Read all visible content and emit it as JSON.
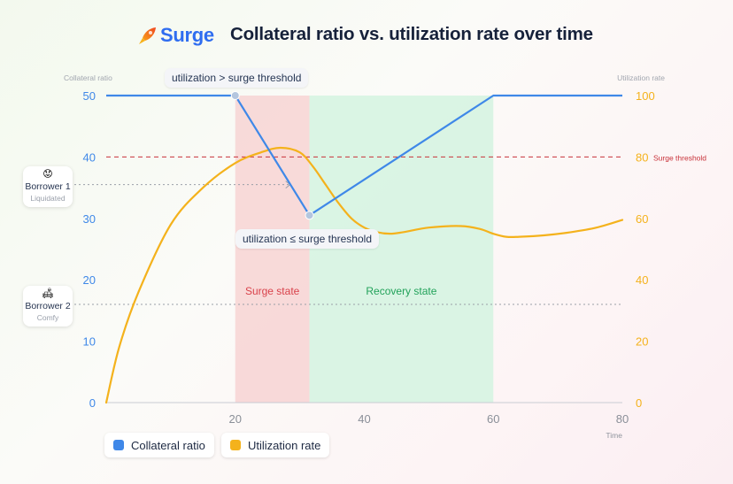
{
  "brand": {
    "name": "Surge"
  },
  "colors": {
    "collateral": "#3f88e8",
    "utilization": "#f4b21c",
    "threshold": "#c8323a",
    "surge_fill": "#f7d3d4",
    "recovery_fill": "#d3f3e0",
    "brand": "#2f6df0"
  },
  "chart_data": {
    "type": "line",
    "title": "Collateral ratio vs. utilization rate over time",
    "xlabel": "Time",
    "ylabel_left": "Collateral ratio",
    "ylabel_right": "Utilization rate",
    "xlim": [
      0,
      80
    ],
    "ylim_left": [
      0,
      50
    ],
    "ylim_right": [
      0,
      100
    ],
    "x_ticks": [
      "20",
      "40",
      "60",
      "80"
    ],
    "y_left_ticks": [
      "0",
      "10",
      "20",
      "30",
      "40",
      "50"
    ],
    "y_right_ticks": [
      "0",
      "20",
      "40",
      "60",
      "80",
      "100"
    ],
    "series": [
      {
        "name": "Collateral ratio",
        "axis": "left",
        "x": [
          0,
          20,
          31.5,
          60,
          80
        ],
        "values": [
          50,
          50,
          30.5,
          50,
          50
        ]
      },
      {
        "name": "Utilization rate",
        "axis": "right",
        "x": [
          0,
          2,
          5,
          10,
          15,
          20,
          24,
          27,
          30,
          32,
          34,
          36,
          38,
          40,
          42,
          44,
          46,
          50,
          55,
          58,
          60,
          62,
          64,
          68,
          72,
          76,
          80
        ],
        "values": [
          0,
          18,
          36,
          58,
          70,
          78,
          81.5,
          83,
          81.5,
          77,
          71,
          65,
          60,
          57,
          55.5,
          55,
          55.5,
          57,
          57.5,
          56.5,
          55,
          54,
          54,
          54.5,
          55.5,
          57,
          59.5
        ]
      }
    ],
    "threshold": {
      "value": 80,
      "axis": "right",
      "label": "Surge threshold"
    },
    "regions": [
      {
        "name": "Surge state",
        "x": [
          20,
          31.5
        ]
      },
      {
        "name": "Recovery state",
        "x": [
          31.5,
          60
        ]
      }
    ],
    "markers": [
      {
        "x": 20,
        "y": 50
      },
      {
        "x": 31.5,
        "y": 30.5
      }
    ],
    "borrower_levels": [
      {
        "name": "Borrower 1",
        "y": 35.5
      },
      {
        "name": "Borrower 2",
        "y": 16
      }
    ]
  },
  "annotations": {
    "surge_callout": "utilization > surge threshold",
    "recovery_callout": "utilization ≤ surge threshold"
  },
  "borrowers": [
    {
      "emoji": "😟",
      "name": "Borrower 1",
      "status": "Liquidated"
    },
    {
      "emoji": "🛋",
      "name": "Borrower 2",
      "status": "Comfy"
    }
  ],
  "legend": [
    "Collateral ratio",
    "Utilization rate"
  ]
}
